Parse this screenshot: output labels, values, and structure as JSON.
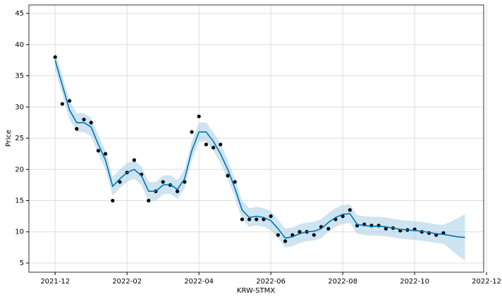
{
  "chart_data": {
    "type": "forecast",
    "xlabel": "KRW-STMX",
    "ylabel": "Price",
    "xlim": [
      -0.73,
      11.92
    ],
    "ylim": [
      3.53,
      46.36
    ],
    "xticks": [
      {
        "value": 0,
        "label": "2021-12"
      },
      {
        "value": 2,
        "label": "2022-02"
      },
      {
        "value": 4,
        "label": "2022-04"
      },
      {
        "value": 6,
        "label": "2022-06"
      },
      {
        "value": 8,
        "label": "2022-08"
      },
      {
        "value": 10,
        "label": "2022-10"
      },
      {
        "value": 12,
        "label": "2022-12"
      }
    ],
    "yticks": [
      5,
      10,
      15,
      20,
      25,
      30,
      35,
      40,
      45
    ],
    "grid": true,
    "x": [
      0,
      0.2,
      0.4,
      0.6,
      0.8,
      1,
      1.2,
      1.4,
      1.6,
      1.8,
      2,
      2.2,
      2.4,
      2.6,
      2.8,
      3,
      3.2,
      3.4,
      3.6,
      3.8,
      4,
      4.2,
      4.4,
      4.6,
      4.8,
      5,
      5.2,
      5.4,
      5.6,
      5.8,
      6,
      6.2,
      6.4,
      6.6,
      6.8,
      7,
      7.2,
      7.4,
      7.6,
      7.8,
      8,
      8.2,
      8.4,
      8.6,
      8.8,
      9,
      9.2,
      9.4,
      9.6,
      9.8,
      10,
      10.2,
      10.4,
      10.6,
      10.8,
      11,
      11.2,
      11.4
    ],
    "band": {
      "color": "#a6cee3",
      "lower": [
        36,
        32,
        28,
        26,
        26,
        25.3,
        22.5,
        20,
        15.8,
        17,
        18,
        18.5,
        17.5,
        15,
        15,
        16,
        16.1,
        15.3,
        17,
        21.5,
        24.5,
        24.5,
        23,
        21,
        18.5,
        15.5,
        12,
        10.8,
        11,
        10.8,
        10.3,
        9,
        7.5,
        7.7,
        8.2,
        8.5,
        8.6,
        9,
        10,
        10.8,
        11.3,
        11.4,
        9.7,
        9.5,
        9.4,
        9.4,
        9.3,
        9.1,
        8.9,
        8.8,
        8.7,
        8.6,
        8.4,
        8.2,
        8.1,
        7.2,
        6.2,
        5.4
      ],
      "upper": [
        39,
        35,
        31,
        29,
        29,
        28.3,
        25.5,
        23,
        18.8,
        20,
        21,
        21.5,
        20.5,
        18,
        18,
        19,
        19.1,
        18.3,
        20,
        24.5,
        27.5,
        27.5,
        26,
        24,
        21.5,
        18.5,
        15,
        13.8,
        14,
        13.8,
        13.3,
        12,
        10.5,
        10.7,
        11.2,
        11.5,
        11.6,
        12,
        13,
        13.8,
        14.3,
        14.4,
        12.7,
        12.5,
        12.4,
        12.4,
        12.3,
        12.1,
        11.9,
        11.8,
        11.7,
        11.6,
        11.4,
        11.2,
        11.1,
        11.6,
        12.2,
        12.8
      ]
    },
    "forecast": {
      "color": "#0072b2",
      "values": [
        37.5,
        33.5,
        29.5,
        27.5,
        27.5,
        26.8,
        24,
        21.5,
        17.3,
        18.5,
        19.5,
        20,
        19,
        16.5,
        16.5,
        17.5,
        17.6,
        16.8,
        18.5,
        23,
        26,
        26,
        24.5,
        22.5,
        20,
        17,
        13.5,
        12.3,
        12.5,
        12.3,
        11.8,
        10.5,
        9,
        9.2,
        9.7,
        10,
        10.1,
        10.5,
        11.5,
        12.3,
        12.8,
        12.9,
        11.2,
        11,
        10.9,
        10.9,
        10.8,
        10.6,
        10.4,
        10.3,
        10.2,
        10.1,
        9.9,
        9.7,
        9.6,
        9.4,
        9.2,
        9.1
      ]
    },
    "observed": {
      "color": "#000000",
      "x": [
        0,
        0.2,
        0.4,
        0.6,
        0.8,
        1,
        1.2,
        1.4,
        1.6,
        1.8,
        2,
        2.2,
        2.4,
        2.6,
        2.8,
        3,
        3.2,
        3.4,
        3.6,
        3.8,
        4,
        4.2,
        4.4,
        4.6,
        4.8,
        5,
        5.2,
        5.4,
        5.6,
        5.8,
        6,
        6.2,
        6.4,
        6.6,
        6.8,
        7,
        7.2,
        7.4,
        7.6,
        7.8,
        8,
        8.2,
        8.4,
        8.6,
        8.8,
        9,
        9.2,
        9.4,
        9.6,
        9.8,
        10,
        10.2,
        10.4,
        10.6,
        10.8
      ],
      "values": [
        38,
        30.5,
        31,
        26.5,
        28,
        27.5,
        23,
        22.5,
        15,
        18,
        19.5,
        21.5,
        19.2,
        15,
        16.5,
        18,
        17.5,
        16.5,
        18,
        26,
        28.5,
        24,
        23.5,
        24,
        19,
        18,
        12,
        12,
        12,
        12,
        12.5,
        9.5,
        8.5,
        9.5,
        10,
        10,
        9.5,
        10.8,
        10.5,
        12,
        12.5,
        13.5,
        11,
        11.2,
        11,
        11,
        10.5,
        10.6,
        10.2,
        10.3,
        10.4,
        10,
        9.8,
        9.5,
        9.8
      ]
    }
  }
}
